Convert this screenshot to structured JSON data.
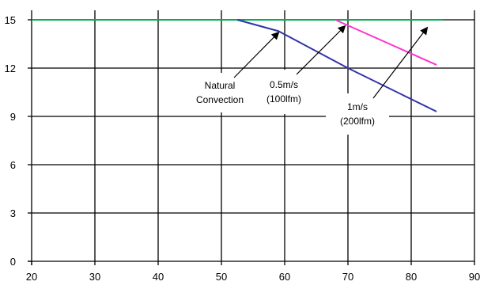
{
  "chart_data": {
    "type": "line",
    "title": "",
    "xlabel": "",
    "ylabel": "",
    "xlim": [
      20,
      90
    ],
    "ylim": [
      0,
      15
    ],
    "x_ticks": [
      20,
      30,
      40,
      50,
      60,
      70,
      80,
      90
    ],
    "y_ticks": [
      0,
      3,
      6,
      9,
      12,
      15
    ],
    "grid": true,
    "series": [
      {
        "color": "#00b050",
        "points": [
          [
            20,
            15
          ],
          [
            85,
            15
          ]
        ]
      },
      {
        "color": "#3333aa",
        "points": [
          [
            52.5,
            15
          ],
          [
            59,
            14.3
          ],
          [
            70,
            12
          ],
          [
            84,
            9.3
          ]
        ]
      },
      {
        "color": "#ff33cc",
        "points": [
          [
            68,
            15
          ],
          [
            84,
            12.2
          ]
        ]
      }
    ],
    "annotations": [
      {
        "lines": [
          "Natural",
          "Convection"
        ],
        "arrow_to": [
          59,
          14.2
        ]
      },
      {
        "lines": [
          "0.5m/s",
          "(100lfm)"
        ],
        "arrow_to": [
          69.5,
          14.6
        ]
      },
      {
        "lines": [
          "1m/s",
          "(200lfm)"
        ],
        "arrow_to": [
          82.5,
          14.5
        ]
      }
    ]
  }
}
